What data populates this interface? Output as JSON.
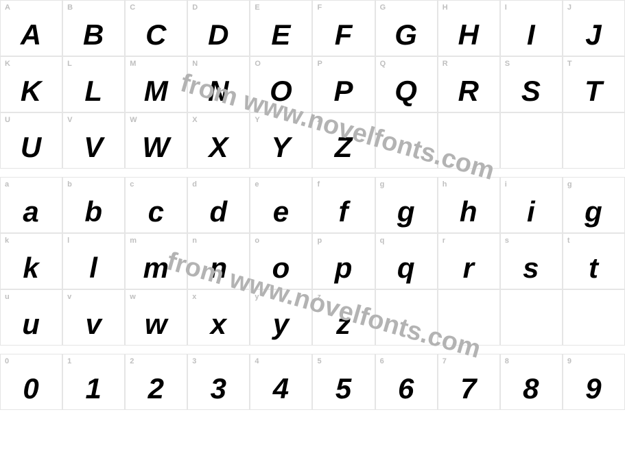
{
  "watermark_text": "from www.novelfonts.com",
  "watermark_color": "#b3b3b3",
  "border_color": "#e5e5e5",
  "label_color": "#bfbfbf",
  "glyph_color": "#000000",
  "background_color": "#ffffff",
  "label_fontsize": 11,
  "glyph_fontsize": 42,
  "glyph_style": "italic",
  "glyph_weight": "bold",
  "sections": [
    {
      "name": "uppercase",
      "rows": [
        [
          {
            "label": "A",
            "glyph": "A"
          },
          {
            "label": "B",
            "glyph": "B"
          },
          {
            "label": "C",
            "glyph": "C"
          },
          {
            "label": "D",
            "glyph": "D"
          },
          {
            "label": "E",
            "glyph": "E"
          },
          {
            "label": "F",
            "glyph": "F"
          },
          {
            "label": "G",
            "glyph": "G"
          },
          {
            "label": "H",
            "glyph": "H"
          },
          {
            "label": "I",
            "glyph": "I"
          },
          {
            "label": "J",
            "glyph": "J"
          }
        ],
        [
          {
            "label": "K",
            "glyph": "K"
          },
          {
            "label": "L",
            "glyph": "L"
          },
          {
            "label": "M",
            "glyph": "M"
          },
          {
            "label": "N",
            "glyph": "N"
          },
          {
            "label": "O",
            "glyph": "O"
          },
          {
            "label": "P",
            "glyph": "P"
          },
          {
            "label": "Q",
            "glyph": "Q"
          },
          {
            "label": "R",
            "glyph": "R"
          },
          {
            "label": "S",
            "glyph": "S"
          },
          {
            "label": "T",
            "glyph": "T"
          }
        ],
        [
          {
            "label": "U",
            "glyph": "U"
          },
          {
            "label": "V",
            "glyph": "V"
          },
          {
            "label": "W",
            "glyph": "W"
          },
          {
            "label": "X",
            "glyph": "X"
          },
          {
            "label": "Y",
            "glyph": "Y"
          },
          {
            "label": "Z",
            "glyph": "Z"
          },
          {
            "label": "",
            "glyph": ""
          },
          {
            "label": "",
            "glyph": ""
          },
          {
            "label": "",
            "glyph": ""
          },
          {
            "label": "",
            "glyph": ""
          }
        ]
      ]
    },
    {
      "name": "lowercase",
      "rows": [
        [
          {
            "label": "a",
            "glyph": "a"
          },
          {
            "label": "b",
            "glyph": "b"
          },
          {
            "label": "c",
            "glyph": "c"
          },
          {
            "label": "d",
            "glyph": "d"
          },
          {
            "label": "e",
            "glyph": "e"
          },
          {
            "label": "f",
            "glyph": "f"
          },
          {
            "label": "g",
            "glyph": "g"
          },
          {
            "label": "h",
            "glyph": "h"
          },
          {
            "label": "i",
            "glyph": "i"
          },
          {
            "label": "g",
            "glyph": "g"
          }
        ],
        [
          {
            "label": "k",
            "glyph": "k"
          },
          {
            "label": "l",
            "glyph": "l"
          },
          {
            "label": "m",
            "glyph": "m"
          },
          {
            "label": "n",
            "glyph": "n"
          },
          {
            "label": "o",
            "glyph": "o"
          },
          {
            "label": "p",
            "glyph": "p"
          },
          {
            "label": "q",
            "glyph": "q"
          },
          {
            "label": "r",
            "glyph": "r"
          },
          {
            "label": "s",
            "glyph": "s"
          },
          {
            "label": "t",
            "glyph": "t"
          }
        ],
        [
          {
            "label": "u",
            "glyph": "u"
          },
          {
            "label": "v",
            "glyph": "v"
          },
          {
            "label": "w",
            "glyph": "w"
          },
          {
            "label": "x",
            "glyph": "x"
          },
          {
            "label": "y",
            "glyph": "y"
          },
          {
            "label": "z",
            "glyph": "z"
          },
          {
            "label": "",
            "glyph": ""
          },
          {
            "label": "",
            "glyph": ""
          },
          {
            "label": "",
            "glyph": ""
          },
          {
            "label": "",
            "glyph": ""
          }
        ]
      ]
    },
    {
      "name": "digits",
      "rows": [
        [
          {
            "label": "0",
            "glyph": "0"
          },
          {
            "label": "1",
            "glyph": "1"
          },
          {
            "label": "2",
            "glyph": "2"
          },
          {
            "label": "3",
            "glyph": "3"
          },
          {
            "label": "4",
            "glyph": "4"
          },
          {
            "label": "5",
            "glyph": "5"
          },
          {
            "label": "6",
            "glyph": "6"
          },
          {
            "label": "7",
            "glyph": "7"
          },
          {
            "label": "8",
            "glyph": "8"
          },
          {
            "label": "9",
            "glyph": "9"
          }
        ]
      ]
    }
  ]
}
